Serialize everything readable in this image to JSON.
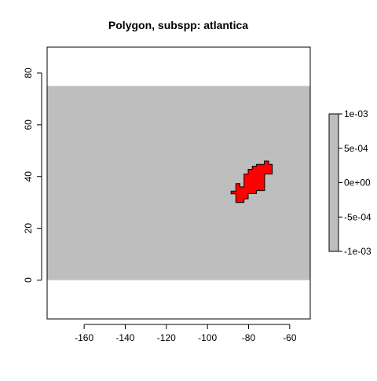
{
  "title": "Polygon, subspp: atlantica",
  "colors": {
    "raster": "#bebebe",
    "polygon": "#ff0000",
    "outline": "#000000",
    "background": "#ffffff"
  },
  "map": {
    "xlim": [
      -178,
      -50
    ],
    "ylim": [
      -15,
      90
    ],
    "raster_extent": {
      "x": [
        -178,
        -50
      ],
      "y": [
        0,
        75
      ]
    },
    "x_ticks": [
      {
        "value": -160,
        "label": "-160"
      },
      {
        "value": -140,
        "label": "-140"
      },
      {
        "value": -120,
        "label": "-120"
      },
      {
        "value": -100,
        "label": "-100"
      },
      {
        "value": -80,
        "label": "-80"
      },
      {
        "value": -60,
        "label": "-60"
      }
    ],
    "y_ticks": [
      {
        "value": 0,
        "label": "0"
      },
      {
        "value": 20,
        "label": "20"
      },
      {
        "value": 40,
        "label": "40"
      },
      {
        "value": 60,
        "label": "60"
      },
      {
        "value": 80,
        "label": "80"
      }
    ],
    "polygon_lonlat": [
      [
        -72.3,
        46.0
      ],
      [
        -70.2,
        46.0
      ],
      [
        -70.2,
        44.7
      ],
      [
        -68.5,
        44.7
      ],
      [
        -68.5,
        41.0
      ],
      [
        -72.2,
        41.0
      ],
      [
        -72.2,
        34.6
      ],
      [
        -76.2,
        34.6
      ],
      [
        -76.2,
        33.4
      ],
      [
        -80.2,
        33.4
      ],
      [
        -80.2,
        31.4
      ],
      [
        -82.2,
        31.4
      ],
      [
        -82.2,
        30.0
      ],
      [
        -86.2,
        30.0
      ],
      [
        -86.2,
        33.3
      ],
      [
        -88.5,
        33.3
      ],
      [
        -88.5,
        34.4
      ],
      [
        -86.2,
        34.4
      ],
      [
        -86.2,
        37.3
      ],
      [
        -84.2,
        37.3
      ],
      [
        -84.2,
        36.0
      ],
      [
        -82.2,
        36.0
      ],
      [
        -82.2,
        41.0
      ],
      [
        -80.2,
        41.0
      ],
      [
        -80.2,
        42.8
      ],
      [
        -78.2,
        42.8
      ],
      [
        -78.2,
        44.0
      ],
      [
        -76.2,
        44.0
      ],
      [
        -76.2,
        44.7
      ],
      [
        -72.3,
        44.7
      ]
    ]
  },
  "legend": {
    "range": [
      -0.001,
      0.001
    ],
    "ticks": [
      {
        "value": 0.001,
        "label": "1e-03"
      },
      {
        "value": 0.0005,
        "label": "5e-04"
      },
      {
        "value": 0,
        "label": "0e+00"
      },
      {
        "value": -0.0005,
        "label": "-5e-04"
      },
      {
        "value": -0.001,
        "label": "-1e-03"
      }
    ]
  }
}
